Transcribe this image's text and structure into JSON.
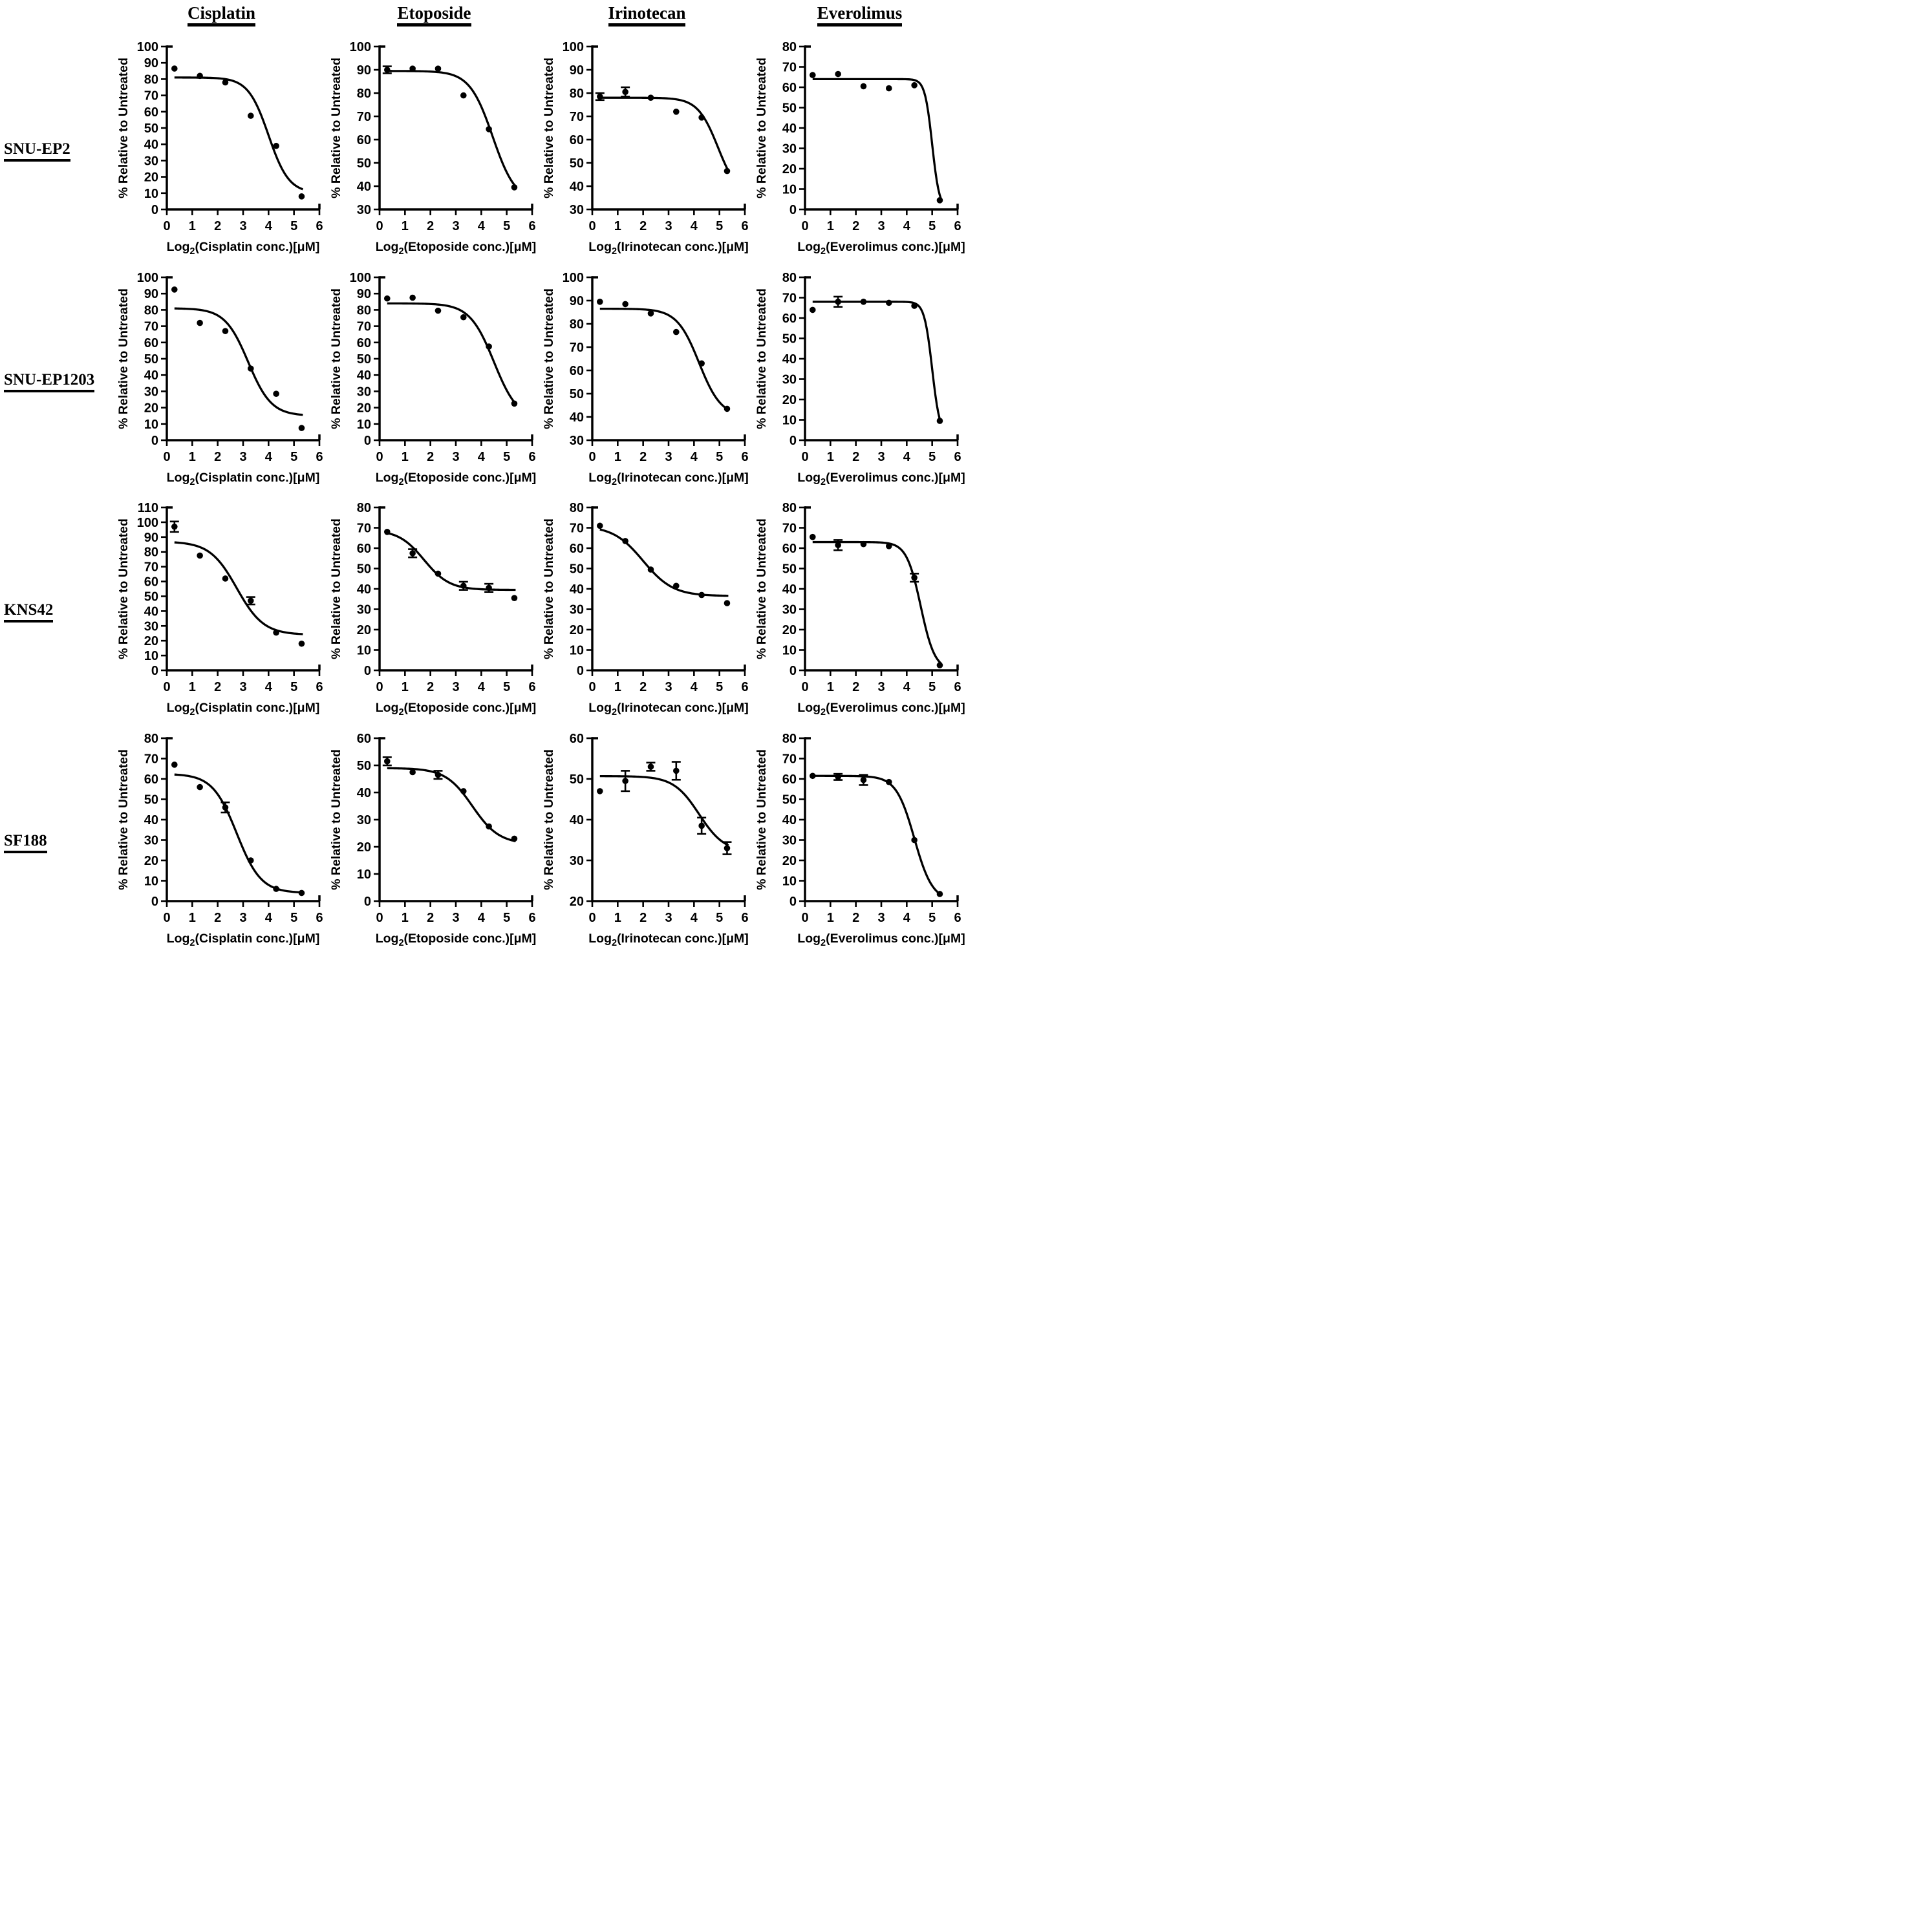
{
  "figure": {
    "column_headers": [
      "Cisplatin",
      "Etoposide",
      "Irinotecan",
      "Everolimus"
    ],
    "row_labels": [
      "SNU-EP2",
      "SNU-EP1203",
      "KNS42",
      "SF188"
    ],
    "y_axis_label": "% Relative to Untreated",
    "x_ticks": [
      0,
      1,
      2,
      3,
      4,
      5,
      6
    ],
    "xlim": [
      0,
      6
    ],
    "ink_color": "#000000",
    "background_color": "#ffffff"
  },
  "chart_data": [
    {
      "type": "scatter",
      "cell_line": "SNU-EP2",
      "drug": "Cisplatin",
      "xlabel": {
        "log": "Log",
        "sub": "2",
        "rest": "(Cisplatin conc.)[μM]"
      },
      "ylabel": "% Relative to Untreated",
      "xlim": [
        0,
        6
      ],
      "ylim": [
        0,
        100
      ],
      "ytick_step": 10,
      "x": [
        0.3,
        1.3,
        2.3,
        3.3,
        4.3,
        5.3
      ],
      "y": [
        86.5,
        82,
        78,
        57.5,
        39,
        8
      ],
      "yerr": [
        0,
        0,
        0,
        0,
        0,
        0
      ],
      "curve": {
        "top": 81,
        "bottom": 10,
        "x50": 4.0,
        "slope": 2.5
      }
    },
    {
      "type": "scatter",
      "cell_line": "SNU-EP2",
      "drug": "Etoposide",
      "xlabel": {
        "log": "Log",
        "sub": "2",
        "rest": "(Etoposide conc.)[μM]"
      },
      "ylabel": "% Relative to Untreated",
      "xlim": [
        0,
        6
      ],
      "ylim": [
        30,
        100
      ],
      "ytick_step": 10,
      "x": [
        0.3,
        1.3,
        2.3,
        3.3,
        4.3,
        5.3
      ],
      "y": [
        90,
        90.5,
        90.5,
        79,
        64.5,
        39.5
      ],
      "yerr": [
        1.5,
        0,
        0,
        0,
        0,
        0
      ],
      "curve": {
        "top": 89.5,
        "bottom": 33,
        "x50": 4.45,
        "slope": 2.2
      }
    },
    {
      "type": "scatter",
      "cell_line": "SNU-EP2",
      "drug": "Irinotecan",
      "xlabel": {
        "log": "Log",
        "sub": "2",
        "rest": "(Irinotecan conc.)[μM]"
      },
      "ylabel": "% Relative to Untreated",
      "xlim": [
        0,
        6
      ],
      "ylim": [
        30,
        100
      ],
      "ytick_step": 10,
      "x": [
        0.3,
        1.3,
        2.3,
        3.3,
        4.3,
        5.3
      ],
      "y": [
        78.5,
        80.5,
        78,
        72,
        69.5,
        46.5
      ],
      "yerr": [
        1.5,
        2,
        0,
        0,
        0,
        0
      ],
      "curve": {
        "top": 78,
        "bottom": 35,
        "x50": 4.95,
        "slope": 2.5
      }
    },
    {
      "type": "scatter",
      "cell_line": "SNU-EP2",
      "drug": "Everolimus",
      "xlabel": {
        "log": "Log",
        "sub": "2",
        "rest": "(Everolimus conc.)[μM]"
      },
      "ylabel": "% Relative to Untreated",
      "xlim": [
        0,
        6
      ],
      "ylim": [
        0,
        80
      ],
      "ytick_step": 10,
      "x": [
        0.3,
        1.3,
        2.3,
        3.3,
        4.3,
        5.3
      ],
      "y": [
        66,
        66.5,
        60.5,
        59.5,
        61,
        4.5
      ],
      "yerr": [
        0,
        0,
        0,
        0,
        0,
        0
      ],
      "curve": {
        "top": 64,
        "bottom": 0,
        "x50": 5.0,
        "slope": 7
      }
    },
    {
      "type": "scatter",
      "cell_line": "SNU-EP1203",
      "drug": "Cisplatin",
      "xlabel": {
        "log": "Log",
        "sub": "2",
        "rest": "(Cisplatin conc.)[μM]"
      },
      "ylabel": "% Relative to Untreated",
      "xlim": [
        0,
        6
      ],
      "ylim": [
        0,
        100
      ],
      "ytick_step": 10,
      "x": [
        0.3,
        1.3,
        2.3,
        3.3,
        4.3,
        5.3
      ],
      "y": [
        92.5,
        72,
        67,
        44,
        28.5,
        7.5
      ],
      "yerr": [
        0,
        0,
        0,
        0,
        0,
        0
      ],
      "curve": {
        "top": 81,
        "bottom": 15,
        "x50": 3.2,
        "slope": 2.2
      }
    },
    {
      "type": "scatter",
      "cell_line": "SNU-EP1203",
      "drug": "Etoposide",
      "xlabel": {
        "log": "Log",
        "sub": "2",
        "rest": "(Etoposide conc.)[μM]"
      },
      "ylabel": "% Relative to Untreated",
      "xlim": [
        0,
        6
      ],
      "ylim": [
        0,
        100
      ],
      "ytick_step": 10,
      "x": [
        0.3,
        1.3,
        2.3,
        3.3,
        4.3,
        5.3
      ],
      "y": [
        87,
        87.5,
        79.5,
        75.5,
        57.5,
        22.5
      ],
      "yerr": [
        0,
        0,
        0,
        0,
        0,
        0
      ],
      "curve": {
        "top": 84,
        "bottom": 12,
        "x50": 4.5,
        "slope": 2.1
      }
    },
    {
      "type": "scatter",
      "cell_line": "SNU-EP1203",
      "drug": "Irinotecan",
      "xlabel": {
        "log": "Log",
        "sub": "2",
        "rest": "(Irinotecan conc.)[μM]"
      },
      "ylabel": "% Relative to Untreated",
      "xlim": [
        0,
        6
      ],
      "ylim": [
        30,
        100
      ],
      "ytick_step": 10,
      "x": [
        0.3,
        1.3,
        2.3,
        3.3,
        4.3,
        5.3
      ],
      "y": [
        89.5,
        88.5,
        84.5,
        76.5,
        63,
        43.5
      ],
      "yerr": [
        0,
        0,
        0,
        0,
        0,
        0
      ],
      "curve": {
        "top": 86.5,
        "bottom": 40,
        "x50": 4.2,
        "slope": 2.3
      }
    },
    {
      "type": "scatter",
      "cell_line": "SNU-EP1203",
      "drug": "Everolimus",
      "xlabel": {
        "log": "Log",
        "sub": "2",
        "rest": "(Everolimus conc.)[μM]"
      },
      "ylabel": "% Relative to Untreated",
      "xlim": [
        0,
        6
      ],
      "ylim": [
        0,
        80
      ],
      "ytick_step": 10,
      "x": [
        0.3,
        1.3,
        2.3,
        3.3,
        4.3,
        5.3
      ],
      "y": [
        64,
        68,
        68,
        67.5,
        66,
        9.5
      ],
      "yerr": [
        0,
        2.5,
        0,
        0,
        0,
        0
      ],
      "curve": {
        "top": 68,
        "bottom": 2,
        "x50": 5.0,
        "slope": 6.5
      }
    },
    {
      "type": "scatter",
      "cell_line": "KNS42",
      "drug": "Cisplatin",
      "xlabel": {
        "log": "Log",
        "sub": "2",
        "rest": "(Cisplatin conc.)[μM]"
      },
      "ylabel": "% Relative to Untreated",
      "xlim": [
        0,
        6
      ],
      "ylim": [
        0,
        110
      ],
      "ytick_step": 10,
      "x": [
        0.3,
        1.3,
        2.3,
        3.3,
        4.3,
        5.3
      ],
      "y": [
        97,
        77.5,
        62,
        47,
        25.5,
        18
      ],
      "yerr": [
        3.5,
        0,
        0,
        2.5,
        0,
        0
      ],
      "curve": {
        "top": 87,
        "bottom": 24,
        "x50": 2.75,
        "slope": 1.9
      }
    },
    {
      "type": "scatter",
      "cell_line": "KNS42",
      "drug": "Etoposide",
      "xlabel": {
        "log": "Log",
        "sub": "2",
        "rest": "(Etoposide conc.)[μM]"
      },
      "ylabel": "% Relative to Untreated",
      "xlim": [
        0,
        6
      ],
      "ylim": [
        0,
        80
      ],
      "ytick_step": 10,
      "x": [
        0.3,
        1.3,
        2.3,
        3.3,
        4.3,
        5.3
      ],
      "y": [
        68,
        57.5,
        47.5,
        41.5,
        40.5,
        35.5
      ],
      "yerr": [
        0,
        2,
        0,
        2,
        2,
        0
      ],
      "curve": {
        "top": 69,
        "bottom": 39.5,
        "x50": 1.75,
        "slope": 2.0
      }
    },
    {
      "type": "scatter",
      "cell_line": "KNS42",
      "drug": "Irinotecan",
      "xlabel": {
        "log": "Log",
        "sub": "2",
        "rest": "(Irinotecan conc.)[μM]"
      },
      "ylabel": "% Relative to Untreated",
      "xlim": [
        0,
        6
      ],
      "ylim": [
        0,
        80
      ],
      "ytick_step": 10,
      "x": [
        0.3,
        1.3,
        2.3,
        3.3,
        4.3,
        5.3
      ],
      "y": [
        71,
        63.5,
        49.5,
        41.5,
        37,
        33
      ],
      "yerr": [
        0,
        0,
        0,
        0,
        0,
        0
      ],
      "curve": {
        "top": 71,
        "bottom": 36.5,
        "x50": 2.0,
        "slope": 1.7
      }
    },
    {
      "type": "scatter",
      "cell_line": "KNS42",
      "drug": "Everolimus",
      "xlabel": {
        "log": "Log",
        "sub": "2",
        "rest": "(Everolimus conc.)[μM]"
      },
      "ylabel": "% Relative to Untreated",
      "xlim": [
        0,
        6
      ],
      "ylim": [
        0,
        80
      ],
      "ytick_step": 10,
      "x": [
        0.3,
        1.3,
        2.3,
        3.3,
        4.3,
        5.3
      ],
      "y": [
        65.5,
        61.5,
        62,
        61,
        45.5,
        2.5
      ],
      "yerr": [
        0,
        2.5,
        0,
        0,
        2,
        0
      ],
      "curve": {
        "top": 63,
        "bottom": 0,
        "x50": 4.55,
        "slope": 3.6
      }
    },
    {
      "type": "scatter",
      "cell_line": "SF188",
      "drug": "Cisplatin",
      "xlabel": {
        "log": "Log",
        "sub": "2",
        "rest": "(Cisplatin conc.)[μM]"
      },
      "ylabel": "% Relative to Untreated",
      "xlim": [
        0,
        6
      ],
      "ylim": [
        0,
        80
      ],
      "ytick_step": 10,
      "x": [
        0.3,
        1.3,
        2.3,
        3.3,
        4.3,
        5.3
      ],
      "y": [
        67,
        56,
        46,
        20,
        6,
        4
      ],
      "yerr": [
        0,
        0,
        2.5,
        0,
        0,
        0
      ],
      "curve": {
        "top": 62.5,
        "bottom": 4,
        "x50": 2.75,
        "slope": 2.1
      }
    },
    {
      "type": "scatter",
      "cell_line": "SF188",
      "drug": "Etoposide",
      "xlabel": {
        "log": "Log",
        "sub": "2",
        "rest": "(Etoposide conc.)[μM]"
      },
      "ylabel": "% Relative to Untreated",
      "xlim": [
        0,
        6
      ],
      "ylim": [
        0,
        60
      ],
      "ytick_step": 10,
      "x": [
        0.3,
        1.3,
        2.3,
        3.3,
        4.3,
        5.3
      ],
      "y": [
        51.5,
        47.5,
        46.5,
        40.5,
        27.5,
        23
      ],
      "yerr": [
        1.5,
        0,
        1.5,
        0,
        0,
        0
      ],
      "curve": {
        "top": 49,
        "bottom": 21,
        "x50": 3.65,
        "slope": 1.9
      }
    },
    {
      "type": "scatter",
      "cell_line": "SF188",
      "drug": "Irinotecan",
      "xlabel": {
        "log": "Log",
        "sub": "2",
        "rest": "(Irinotecan conc.)[μM]"
      },
      "ylabel": "% Relative to Untreated",
      "xlim": [
        0,
        6
      ],
      "ylim": [
        20,
        60
      ],
      "ytick_step": 10,
      "x": [
        0.3,
        1.3,
        2.3,
        3.3,
        4.3,
        5.3
      ],
      "y": [
        47,
        49.5,
        53,
        52,
        38.5,
        33
      ],
      "yerr": [
        0,
        2.5,
        1,
        2.2,
        2,
        1.5
      ],
      "curve": {
        "top": 50.7,
        "bottom": 32,
        "x50": 4.2,
        "slope": 2.0
      }
    },
    {
      "type": "scatter",
      "cell_line": "SF188",
      "drug": "Everolimus",
      "xlabel": {
        "log": "Log",
        "sub": "2",
        "rest": "(Everolimus conc.)[μM]"
      },
      "ylabel": "% Relative to Untreated",
      "xlim": [
        0,
        6
      ],
      "ylim": [
        0,
        80
      ],
      "ytick_step": 10,
      "x": [
        0.3,
        1.3,
        2.3,
        3.3,
        4.3,
        5.3
      ],
      "y": [
        61.5,
        61,
        59.5,
        58.5,
        30,
        3.5
      ],
      "yerr": [
        0,
        1.5,
        2.5,
        0,
        0,
        0
      ],
      "curve": {
        "top": 61.5,
        "bottom": 0,
        "x50": 4.3,
        "slope": 2.8
      }
    }
  ]
}
